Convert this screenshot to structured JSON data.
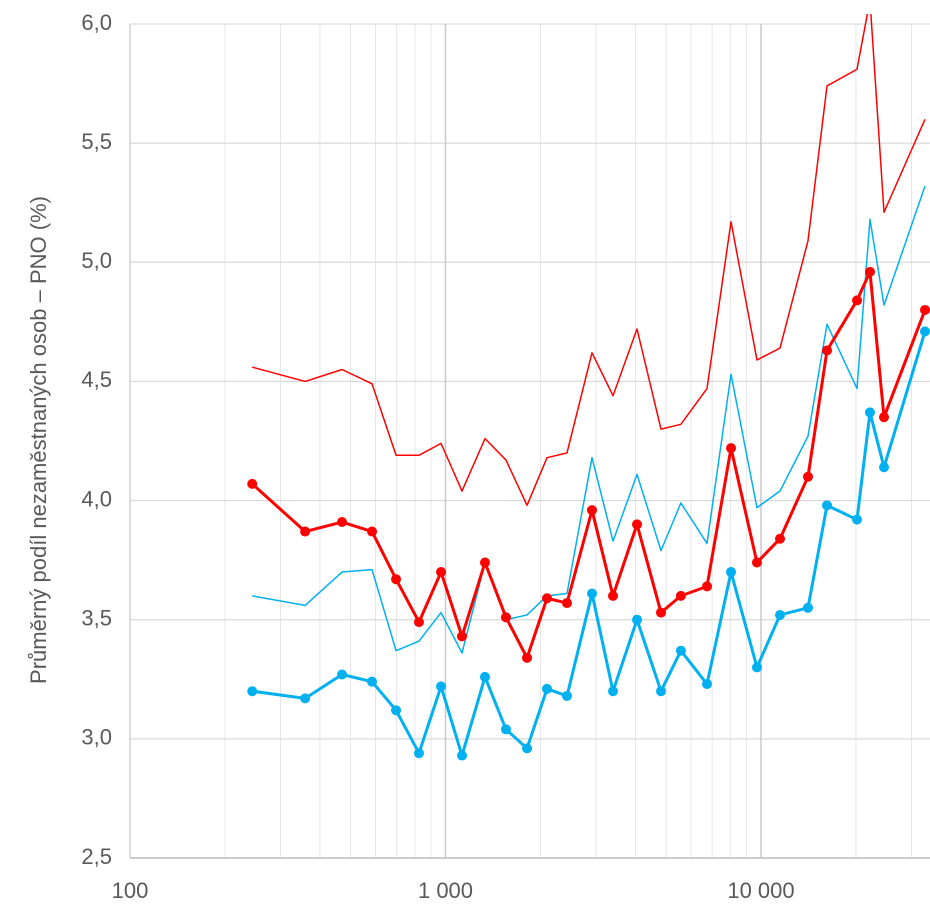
{
  "chart_data": {
    "type": "line",
    "ylabel": "Průměrný podíl nezaměstnaných osob – PNO (%)",
    "xscale": "log",
    "grid": true,
    "xlim": [
      100,
      34000
    ],
    "ylim": [
      2.5,
      6.0
    ],
    "xticks": [
      100,
      {
        "value": 1000,
        "label": "1 000"
      },
      {
        "value": 10000,
        "label": "10 000"
      }
    ],
    "xminor": [
      200,
      300,
      400,
      500,
      600,
      700,
      800,
      900,
      2000,
      3000,
      4000,
      5000,
      6000,
      7000,
      8000,
      9000,
      20000,
      30000
    ],
    "yticks": [
      {
        "value": 2.5,
        "label": "2,5"
      },
      {
        "value": 3.0,
        "label": "3,0"
      },
      {
        "value": 3.5,
        "label": "3,5"
      },
      {
        "value": 4.0,
        "label": "4,0"
      },
      {
        "value": 4.5,
        "label": "4,5"
      },
      {
        "value": 5.0,
        "label": "5,0"
      },
      {
        "value": 5.5,
        "label": "5,5"
      },
      {
        "value": 6.0,
        "label": "6,0"
      }
    ],
    "x": [
      244,
      359,
      470,
      585,
      697,
      824,
      968,
      1128,
      1334,
      1555,
      1813,
      2098,
      2427,
      2913,
      3396,
      4046,
      4820,
      5573,
      6743,
      8035,
      9710,
      11490,
      14090,
      16190,
      20150,
      22150,
      24540,
      33100
    ],
    "series": [
      {
        "color": "#ff0000",
        "line_width": 1.5,
        "markers": false,
        "values": [
          4.56,
          4.5,
          4.55,
          4.49,
          4.19,
          4.19,
          4.24,
          4.04,
          4.26,
          4.17,
          3.98,
          4.18,
          4.2,
          4.62,
          4.44,
          4.72,
          4.3,
          4.32,
          4.47,
          5.17,
          4.59,
          4.64,
          5.09,
          5.74,
          5.81,
          6.1,
          5.21,
          5.6
        ]
      },
      {
        "color": "#00b0f0",
        "line_width": 1.5,
        "markers": false,
        "values": [
          3.6,
          3.56,
          3.7,
          3.71,
          3.37,
          3.41,
          3.53,
          3.36,
          3.74,
          3.5,
          3.52,
          3.6,
          3.61,
          4.18,
          3.83,
          4.11,
          3.79,
          3.99,
          3.82,
          4.53,
          3.97,
          4.04,
          4.27,
          4.74,
          4.47,
          5.18,
          4.82,
          5.32
        ]
      },
      {
        "color": "#ff0000",
        "line_width": 3,
        "markers": true,
        "values": [
          4.07,
          3.87,
          3.91,
          3.87,
          3.67,
          3.49,
          3.7,
          3.43,
          3.74,
          3.51,
          3.34,
          3.59,
          3.57,
          3.96,
          3.6,
          3.9,
          3.53,
          3.6,
          3.64,
          4.22,
          3.74,
          3.84,
          4.1,
          4.63,
          4.84,
          4.96,
          4.35,
          4.8
        ]
      },
      {
        "color": "#00b0f0",
        "line_width": 3,
        "markers": true,
        "values": [
          3.2,
          3.17,
          3.27,
          3.24,
          3.12,
          2.94,
          3.22,
          2.93,
          3.26,
          3.04,
          2.96,
          3.21,
          3.18,
          3.61,
          3.2,
          3.5,
          3.2,
          3.37,
          3.23,
          3.7,
          3.3,
          3.52,
          3.55,
          3.98,
          3.92,
          4.37,
          4.14,
          4.71
        ]
      }
    ]
  }
}
